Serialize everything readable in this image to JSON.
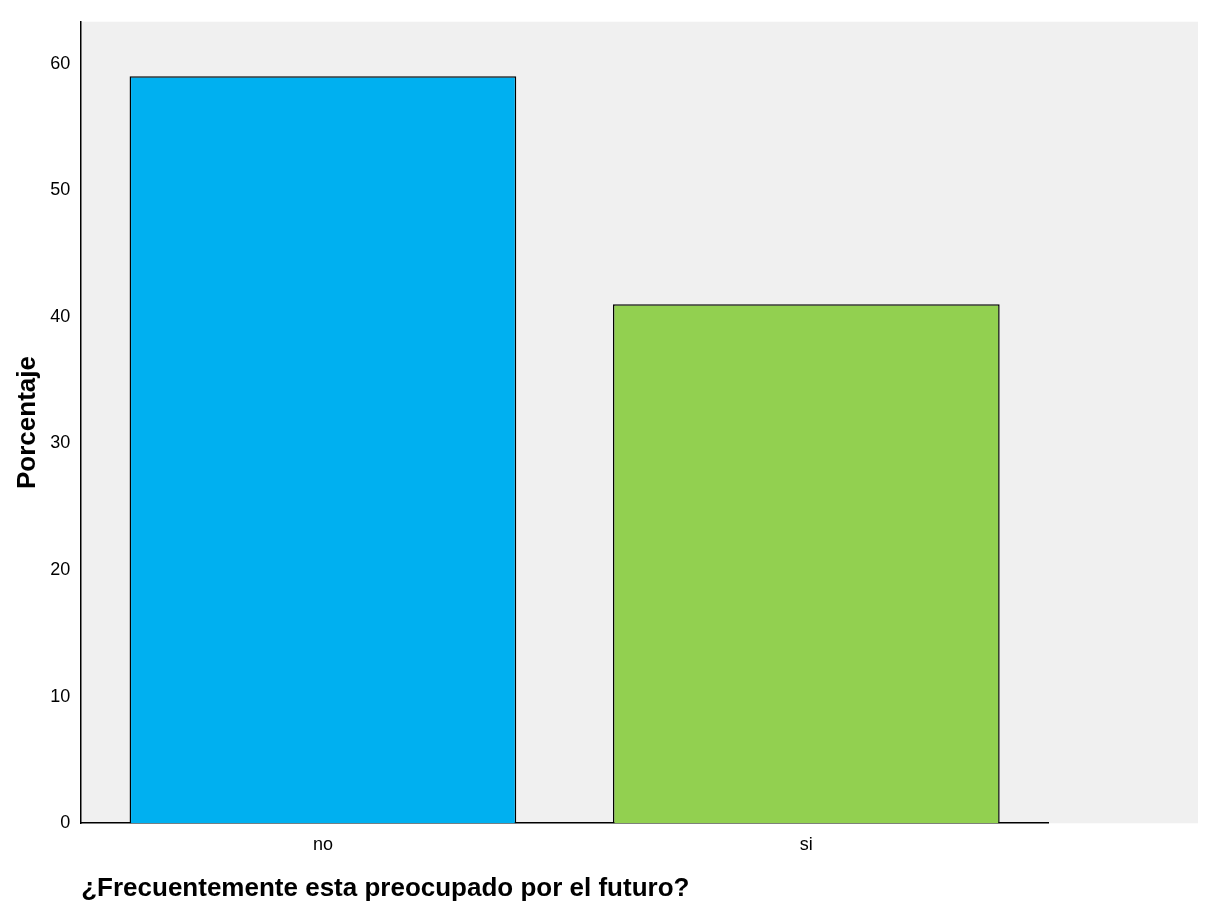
{
  "chart_data": {
    "type": "bar",
    "xlabel": "¿Frecuentemente esta preocupado por el futuro?",
    "ylabel": "Porcentaje",
    "categories": [
      "no",
      "si"
    ],
    "values": [
      59,
      41
    ],
    "colors": [
      "#00b0f0",
      "#92d050"
    ],
    "ylim": [
      0,
      63.3
    ],
    "yticks": [
      0,
      10,
      20,
      30,
      40,
      50,
      60
    ],
    "grid": false,
    "legend": false
  }
}
